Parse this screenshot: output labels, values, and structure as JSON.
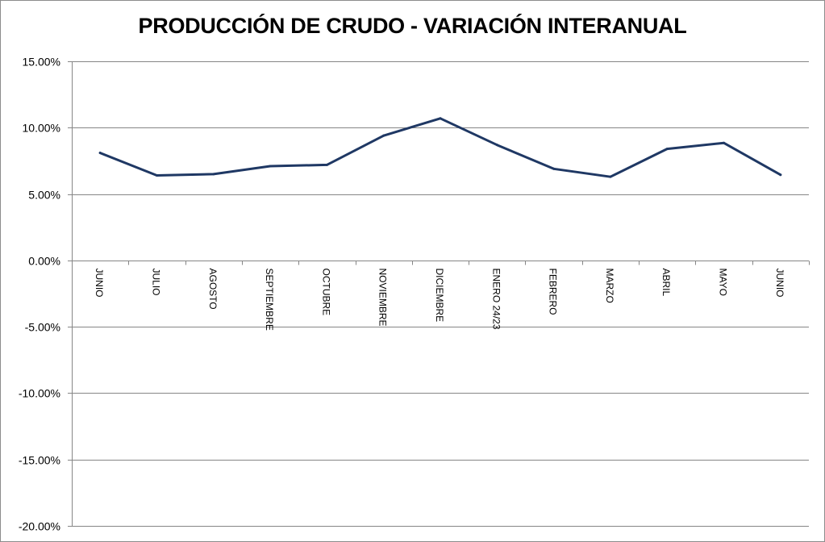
{
  "chart_data": {
    "type": "line",
    "title": "PRODUCCIÓN DE CRUDO - VARIACIÓN INTERANUAL",
    "xlabel": "",
    "ylabel": "",
    "categories": [
      "JUNIO",
      "JULIO",
      "AGOSTO",
      "SEPTIEMBRE",
      "OCTUBRE",
      "NOVIEMBRE",
      "DICIEMBRE",
      "ENERO 24/23",
      "FEBRERO",
      "MARZO",
      "ABRIL",
      "MAYO",
      "JUNIO"
    ],
    "series": [
      {
        "values": [
          8.1,
          6.4,
          6.5,
          7.1,
          7.2,
          9.4,
          10.7,
          8.7,
          6.9,
          6.3,
          8.4,
          8.85,
          6.45
        ]
      }
    ],
    "ylim": [
      -20,
      15
    ],
    "yticks": [
      15,
      10,
      5,
      0,
      -5,
      -10,
      -15,
      -20
    ],
    "ytick_labels": [
      "15.00%",
      "10.00%",
      "5.00%",
      "0.00%",
      "-5.00%",
      "-10.00%",
      "-15.00%",
      "-20.00%"
    ],
    "grid": true,
    "legend": "none",
    "line_color": "#1f3864",
    "grid_color": "#868686"
  }
}
